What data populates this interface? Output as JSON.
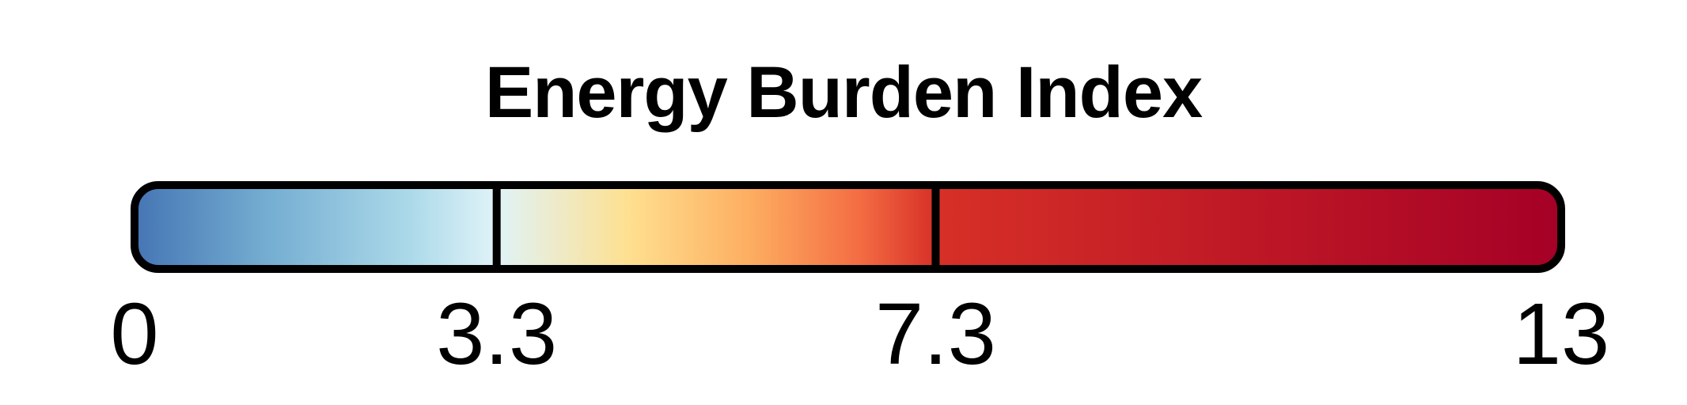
{
  "chart_data": {
    "type": "colorbar",
    "title": "Energy Burden Index",
    "range": [
      0,
      13
    ],
    "breaks": [
      0,
      3.3,
      7.3,
      13
    ],
    "tick_labels": [
      "0",
      "3.3",
      "7.3",
      "13"
    ],
    "color_scale": {
      "name": "RdYlBu (reversed)",
      "stops": [
        {
          "value": 0,
          "color": "#4575b4"
        },
        {
          "value": 1.2,
          "color": "#74add1"
        },
        {
          "value": 2.5,
          "color": "#abd9e9"
        },
        {
          "value": 3.3,
          "color": "#e0f3f8"
        },
        {
          "value": 4.5,
          "color": "#fee090"
        },
        {
          "value": 5.6,
          "color": "#fdae61"
        },
        {
          "value": 6.6,
          "color": "#f46d43"
        },
        {
          "value": 7.3,
          "color": "#d73027"
        },
        {
          "value": 13,
          "color": "#a50026"
        }
      ]
    }
  }
}
